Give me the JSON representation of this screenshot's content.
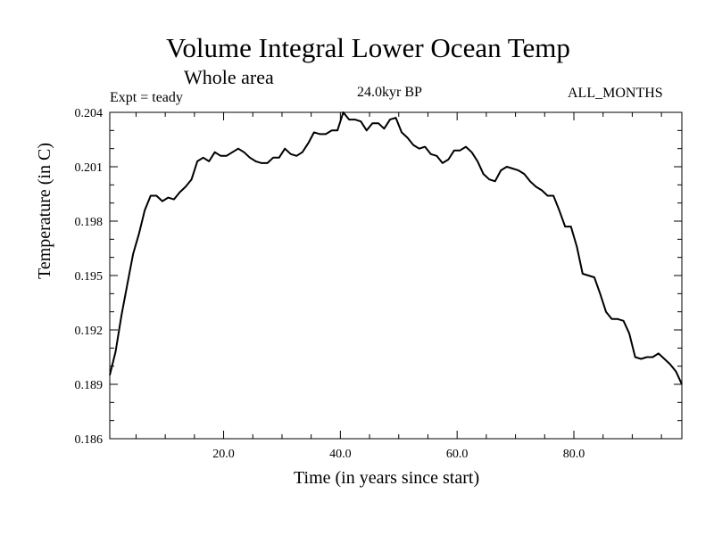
{
  "chart_data": {
    "type": "line",
    "title": "Volume Integral Lower Ocean Temp",
    "subtitle": "Whole area",
    "experiment": "Expt = teady",
    "period": "24.0kyr BP",
    "months": "ALL_MONTHS",
    "xlabel": "Time (in years since start)",
    "ylabel": "Temperature (in C)",
    "xlim": [
      0.5,
      98.5
    ],
    "ylim": [
      0.186,
      0.204
    ],
    "x_ticks": [
      20,
      40,
      60,
      80
    ],
    "x_tick_labels": [
      "20.0",
      "40.0",
      "60.0",
      "80.0"
    ],
    "y_ticks": [
      0.186,
      0.189,
      0.192,
      0.195,
      0.198,
      0.201,
      0.204
    ],
    "y_tick_labels": [
      "0.186",
      "0.189",
      "0.192",
      "0.195",
      "0.198",
      "0.201",
      "0.204"
    ],
    "grid": false,
    "series": [
      {
        "name": "Temperature",
        "x": [
          0.5,
          1.5,
          2.5,
          3.5,
          4.5,
          5.5,
          6.5,
          7.5,
          8.5,
          9.5,
          10.5,
          11.5,
          12.5,
          13.5,
          14.5,
          15.5,
          16.5,
          17.5,
          18.5,
          19.5,
          20.5,
          21.5,
          22.5,
          23.5,
          24.5,
          25.5,
          26.5,
          27.5,
          28.5,
          29.5,
          30.5,
          31.5,
          32.5,
          33.5,
          34.5,
          35.5,
          36.5,
          37.5,
          38.5,
          39.5,
          40.5,
          41.5,
          42.5,
          43.5,
          44.5,
          45.5,
          46.5,
          47.5,
          48.5,
          49.5,
          50.5,
          51.5,
          52.5,
          53.5,
          54.5,
          55.5,
          56.5,
          57.5,
          58.5,
          59.5,
          60.5,
          61.5,
          62.5,
          63.5,
          64.5,
          65.5,
          66.5,
          67.5,
          68.5,
          69.5,
          70.5,
          71.5,
          72.5,
          73.5,
          74.5,
          75.5,
          76.5,
          77.5,
          78.5,
          79.5,
          80.5,
          81.5,
          82.5,
          83.5,
          84.5,
          85.5,
          86.5,
          87.5,
          88.5,
          89.5,
          90.5,
          91.5,
          92.5,
          93.5,
          94.5,
          95.5,
          96.5,
          97.5,
          98.5
        ],
        "y": [
          0.1895,
          0.1908,
          0.1928,
          0.1945,
          0.1962,
          0.1973,
          0.1986,
          0.1994,
          0.1994,
          0.1991,
          0.1993,
          0.1992,
          0.1996,
          0.1999,
          0.2003,
          0.2013,
          0.2015,
          0.2013,
          0.2018,
          0.2016,
          0.2016,
          0.2018,
          0.202,
          0.2018,
          0.2015,
          0.2013,
          0.2012,
          0.2012,
          0.2015,
          0.2015,
          0.202,
          0.2017,
          0.2016,
          0.2018,
          0.2023,
          0.2029,
          0.2028,
          0.2028,
          0.203,
          0.203,
          0.204,
          0.2036,
          0.2036,
          0.2035,
          0.203,
          0.2034,
          0.2034,
          0.2031,
          0.2036,
          0.2037,
          0.2029,
          0.2026,
          0.2022,
          0.202,
          0.2021,
          0.2017,
          0.2016,
          0.2012,
          0.2014,
          0.2019,
          0.2019,
          0.2021,
          0.2018,
          0.2013,
          0.2006,
          0.2003,
          0.2002,
          0.2008,
          0.201,
          0.2009,
          0.2008,
          0.2006,
          0.2002,
          0.1999,
          0.1997,
          0.1994,
          0.1994,
          0.1986,
          0.1977,
          0.1977,
          0.1966,
          0.1951,
          0.195,
          0.1949,
          0.194,
          0.193,
          0.1926,
          0.1926,
          0.1925,
          0.1918,
          0.1905,
          0.1904,
          0.1905,
          0.1905,
          0.1907,
          0.1904,
          0.1901,
          0.1897,
          0.189
        ]
      }
    ]
  }
}
